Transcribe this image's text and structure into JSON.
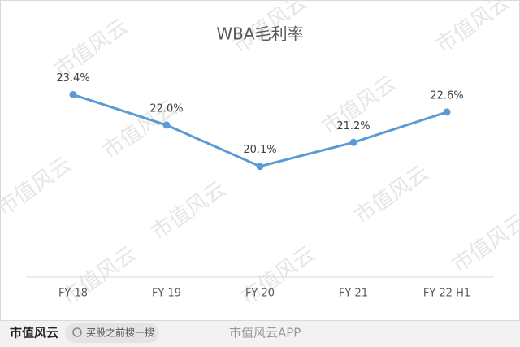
{
  "chart_data": {
    "type": "line",
    "title": "WBA毛利率",
    "categories": [
      "FY 18",
      "FY 19",
      "FY 20",
      "FY 21",
      "FY 22 H1"
    ],
    "series": [
      {
        "name": "WBA毛利率",
        "color": "#5b9bd5",
        "values": [
          23.4,
          22.0,
          20.1,
          21.2,
          22.6
        ],
        "value_labels": [
          "23.4%",
          "22.0%",
          "20.1%",
          "21.2%",
          "22.6%"
        ]
      }
    ],
    "ylim": [
      15,
      26
    ]
  },
  "watermark": "市值风云",
  "footer": {
    "logo": "市值风云",
    "search": "买股之前搜一搜",
    "app": "市值风云APP"
  }
}
